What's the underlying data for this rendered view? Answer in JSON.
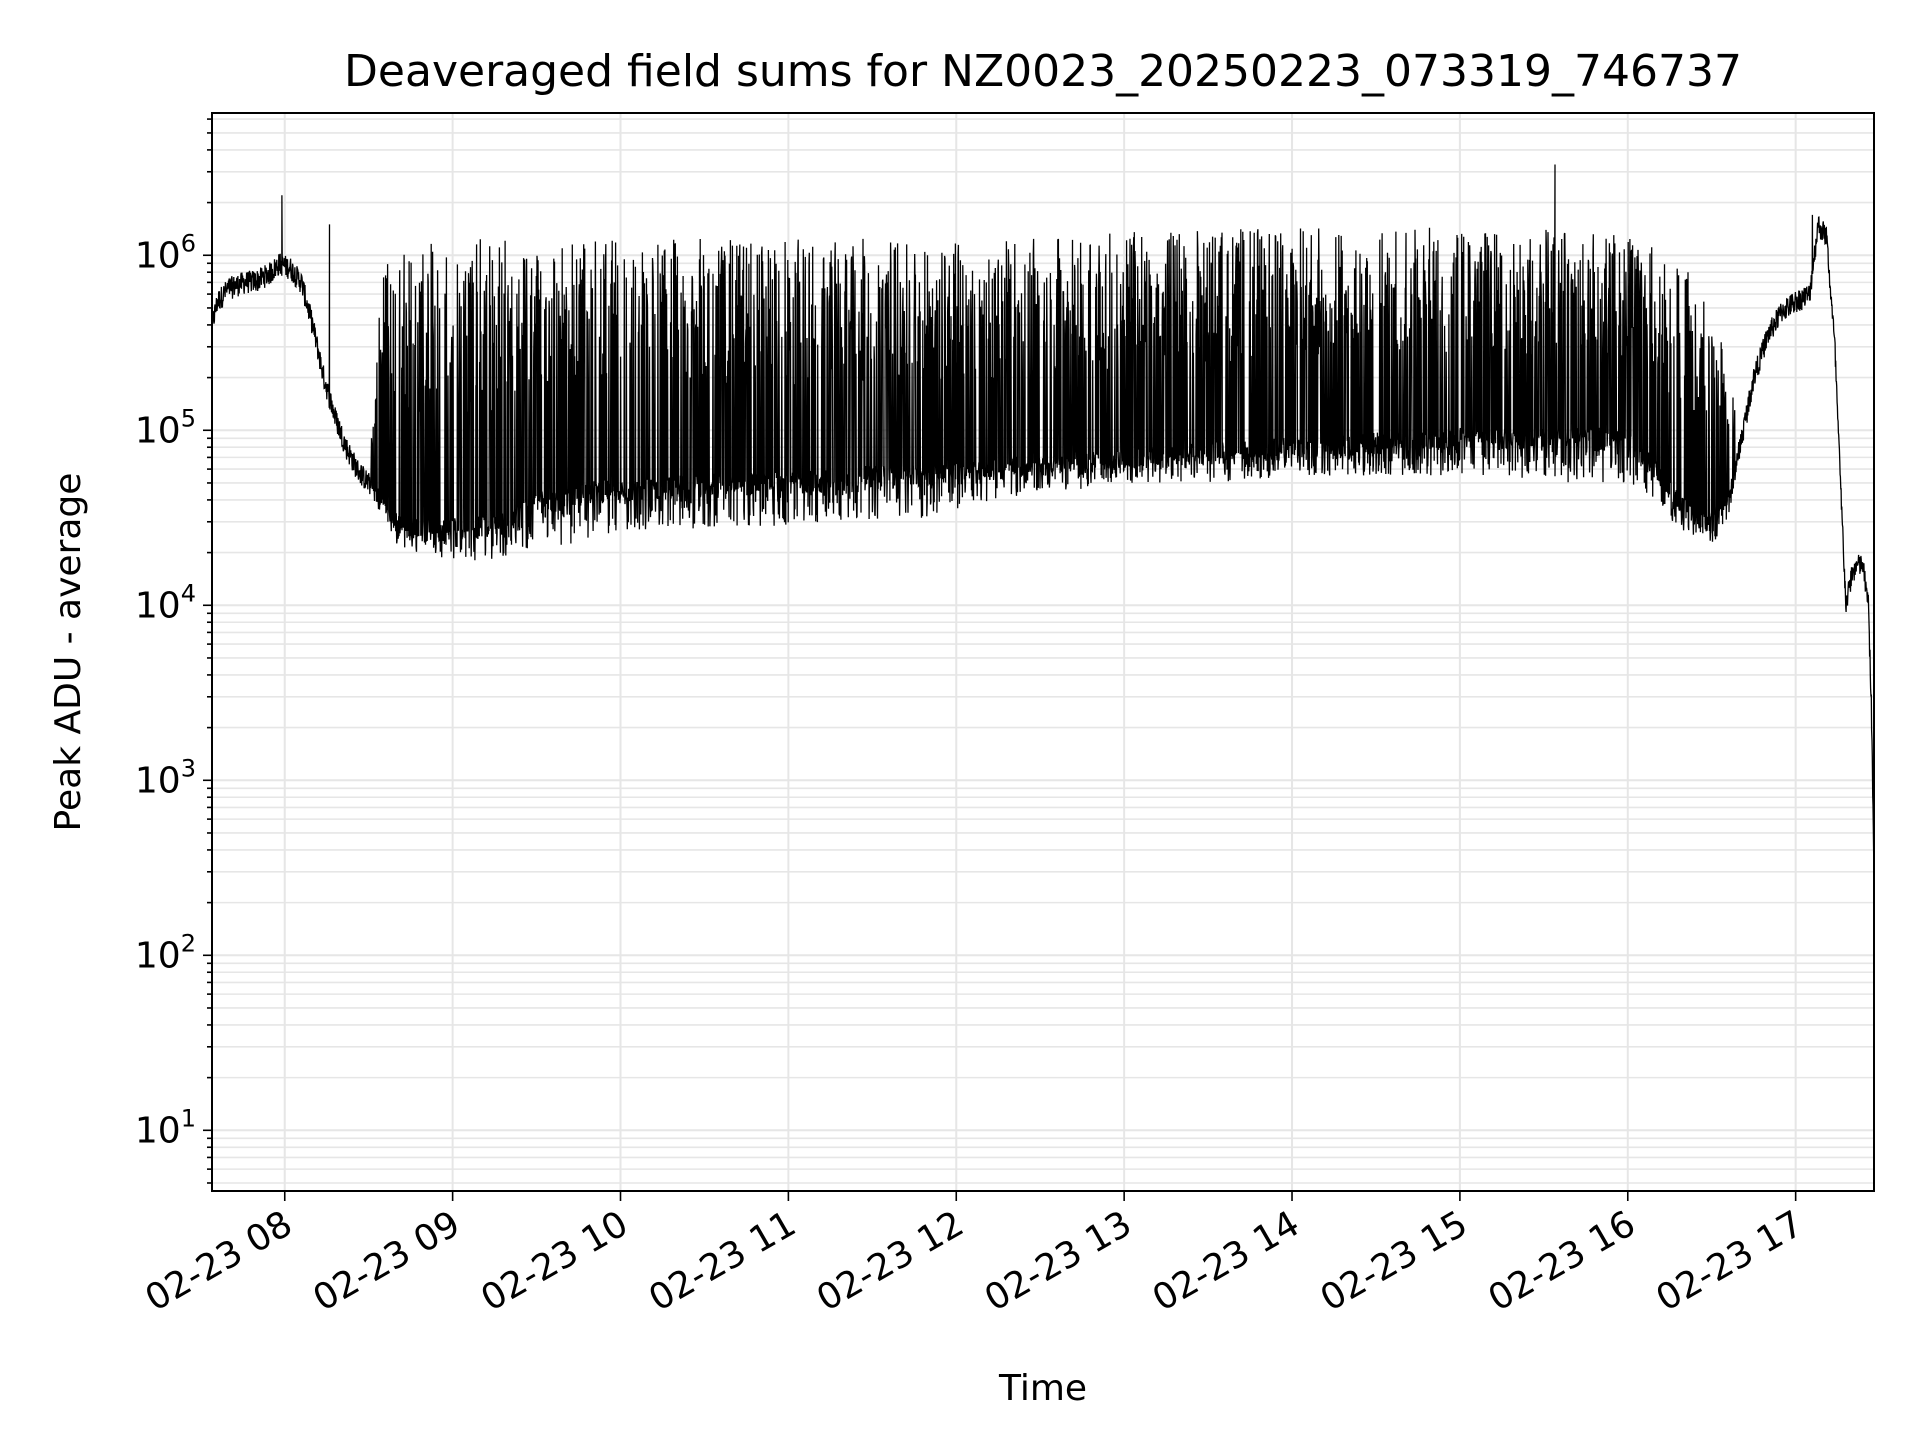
{
  "chart_data": {
    "type": "line",
    "title": "Deaveraged field sums for NZ0023_20250223_073319_746737",
    "xlabel": "Time",
    "ylabel": "Peak ADU - average",
    "y_scale": "log",
    "ylim": [
      4.5,
      6500000
    ],
    "xlim": [
      "02-23 07:34",
      "02-23 17:28"
    ],
    "grid": true,
    "line_color": "#000000",
    "grid_color": "#e6e6e6",
    "x_ticks": [
      "02-23 08",
      "02-23 09",
      "02-23 10",
      "02-23 11",
      "02-23 12",
      "02-23 13",
      "02-23 14",
      "02-23 15",
      "02-23 16",
      "02-23 17"
    ],
    "y_ticks": [
      {
        "base": "10",
        "exp": "1",
        "value": 10
      },
      {
        "base": "10",
        "exp": "2",
        "value": 100
      },
      {
        "base": "10",
        "exp": "3",
        "value": 1000
      },
      {
        "base": "10",
        "exp": "4",
        "value": 10000
      },
      {
        "base": "10",
        "exp": "5",
        "value": 100000
      },
      {
        "base": "10",
        "exp": "6",
        "value": 1000000
      }
    ],
    "series": [
      {
        "x": [
          "02-23 07:34",
          "02-23 07:36",
          "02-23 07:40",
          "02-23 07:45",
          "02-23 07:50",
          "02-23 07:55",
          "02-23 07:58",
          "02-23 08:02",
          "02-23 08:06",
          "02-23 08:10",
          "02-23 08:14",
          "02-23 08:18",
          "02-23 08:22",
          "02-23 08:26",
          "02-23 08:30",
          "02-23 08:35",
          "02-23 08:40",
          "02-23 08:45",
          "02-23 08:50",
          "02-23 08:55",
          "02-23 09:00",
          "02-23 09:10",
          "02-23 09:20",
          "02-23 09:30",
          "02-23 09:40",
          "02-23 09:50",
          "02-23 10:00",
          "02-23 10:15",
          "02-23 10:30",
          "02-23 10:45",
          "02-23 11:00",
          "02-23 11:15",
          "02-23 11:30",
          "02-23 11:45",
          "02-23 12:00",
          "02-23 12:15",
          "02-23 12:30",
          "02-23 12:45",
          "02-23 13:00",
          "02-23 13:15",
          "02-23 13:30",
          "02-23 13:45",
          "02-23 14:00",
          "02-23 14:15",
          "02-23 14:30",
          "02-23 14:45",
          "02-23 15:00",
          "02-23 15:15",
          "02-23 15:30",
          "02-23 15:45",
          "02-23 16:00",
          "02-23 16:10",
          "02-23 16:20",
          "02-23 16:30",
          "02-23 16:36",
          "02-23 16:40",
          "02-23 16:45",
          "02-23 16:50",
          "02-23 16:55",
          "02-23 17:00",
          "02-23 17:05",
          "02-23 17:08",
          "02-23 17:11",
          "02-23 17:14",
          "02-23 17:16",
          "02-23 17:18",
          "02-23 17:20",
          "02-23 17:22",
          "02-23 17:24",
          "02-23 17:26",
          "02-23 17:27",
          "02-23 17:28"
        ],
        "y": [
          400000,
          550000,
          650000,
          700000,
          720000,
          800000,
          900000,
          850000,
          700000,
          400000,
          200000,
          120000,
          80000,
          60000,
          50000,
          40000,
          30000,
          28000,
          27000,
          27000,
          28000,
          28000,
          30000,
          40000,
          40000,
          45000,
          45000,
          47000,
          50000,
          50000,
          50000,
          52000,
          55000,
          55000,
          60000,
          60000,
          65000,
          65000,
          70000,
          70000,
          75000,
          75000,
          80000,
          80000,
          85000,
          85000,
          90000,
          90000,
          90000,
          90000,
          90000,
          60000,
          35000,
          30000,
          40000,
          80000,
          200000,
          350000,
          480000,
          550000,
          600000,
          1500000,
          1300000,
          300000,
          50000,
          10000,
          15000,
          17000,
          17000,
          10000,
          3000,
          300
        ],
        "low": [
          400000,
          550000,
          650000,
          700000,
          720000,
          800000,
          900000,
          850000,
          700000,
          400000,
          200000,
          120000,
          80000,
          60000,
          50000,
          30000,
          22000,
          20000,
          20000,
          19000,
          18000,
          18000,
          19000,
          22000,
          22000,
          24000,
          25000,
          26000,
          28000,
          28000,
          28000,
          30000,
          30000,
          30000,
          35000,
          40000,
          45000,
          45000,
          50000,
          50000,
          50000,
          52000,
          55000,
          55000,
          55000,
          55000,
          55000,
          55000,
          50000,
          50000,
          50000,
          40000,
          25000,
          22000,
          30000,
          80000,
          200000,
          350000,
          480000,
          550000,
          600000,
          1500000,
          1300000,
          300000,
          50000,
          10000,
          15000,
          17000,
          17000,
          10000,
          3000,
          300
        ],
        "high": [
          400000,
          550000,
          650000,
          700000,
          720000,
          800000,
          900000,
          850000,
          700000,
          400000,
          200000,
          120000,
          80000,
          60000,
          50000,
          1000000,
          1100000,
          1100000,
          1150000,
          1200000,
          1200000,
          1250000,
          1250000,
          1250000,
          1250000,
          1250000,
          1250000,
          1250000,
          1250000,
          1250000,
          1250000,
          1250000,
          1250000,
          1250000,
          1200000,
          1200000,
          1250000,
          1300000,
          1350000,
          1400000,
          1400000,
          1450000,
          1450000,
          1450000,
          1450000,
          1450000,
          1400000,
          1400000,
          1400000,
          1350000,
          1300000,
          1200000,
          900000,
          500000,
          300000,
          80000,
          200000,
          350000,
          480000,
          550000,
          600000,
          1500000,
          1300000,
          300000,
          50000,
          10000,
          15000,
          17000,
          17000,
          10000,
          3000,
          300
        ],
        "spikes": [
          {
            "x": "02-23 07:59",
            "y": 2200000
          },
          {
            "x": "02-23 15:34",
            "y": 3300000
          },
          {
            "x": "02-23 08:16",
            "y": 1500000
          },
          {
            "x": "02-23 17:06",
            "y": 1700000
          }
        ]
      }
    ]
  }
}
